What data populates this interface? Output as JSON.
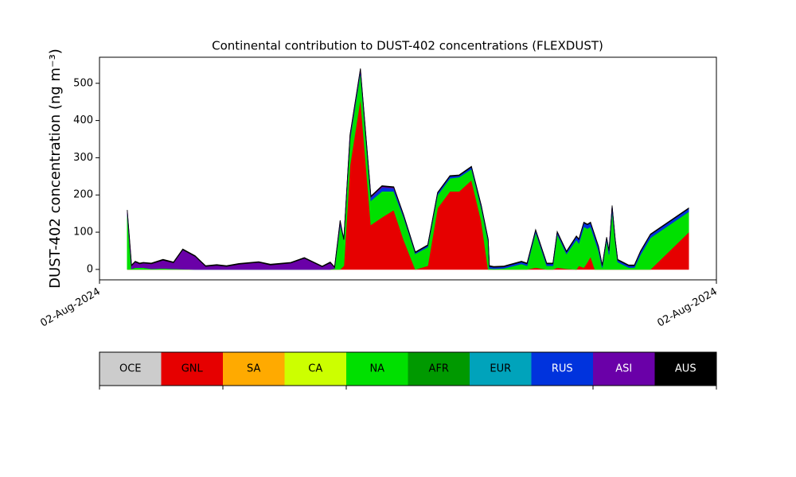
{
  "chart_data": {
    "type": "stacked_area",
    "title": "Continental contribution to DUST-402 concentrations (FLEXDUST)",
    "y_label": "DUST-402 concentration (ng m⁻³)",
    "x": [
      4.5,
      5.2,
      5.8,
      6.5,
      7.1,
      8.4,
      10.3,
      12,
      13.5,
      15.5,
      17.2,
      19,
      20.6,
      22.6,
      25.8,
      27.7,
      31,
      33.2,
      36.1,
      37.4,
      38.1,
      39,
      39.6,
      40.6,
      42.3,
      44,
      45.8,
      47.7,
      49.3,
      51.2,
      53.2,
      54.8,
      56.8,
      58.3,
      60.3,
      61.9,
      63,
      63.2,
      63.9,
      65.5,
      68.4,
      69.3,
      70.7,
      72.5,
      73.5,
      74.2,
      75.7,
      77.3,
      77.7,
      78.5,
      79.1,
      79.6,
      80.3,
      80.9,
      81.5,
      82.2,
      82.6,
      83.1,
      83.6,
      84,
      85.8,
      86.7,
      87.7,
      89.3,
      95.5
    ],
    "xlim": [
      0,
      100
    ],
    "xticks": [
      {
        "value": 0,
        "label": "02-Aug-2024"
      },
      {
        "value": 100,
        "label": "02-Aug-2024"
      }
    ],
    "ylim": [
      -28,
      570
    ],
    "yticks": [
      0,
      100,
      200,
      300,
      400,
      500
    ],
    "series": [
      {
        "name": "GNL",
        "color": "#e60000",
        "values": [
          0,
          0,
          0,
          0,
          0,
          0,
          0,
          0,
          0,
          0,
          0,
          0,
          0,
          0,
          0,
          0,
          0,
          0,
          0,
          0,
          0,
          0,
          10,
          280,
          460,
          120,
          140,
          160,
          80,
          0,
          10,
          165,
          210,
          210,
          240,
          130,
          0,
          0,
          0,
          0,
          0,
          0,
          5,
          0,
          0,
          5,
          2,
          0,
          10,
          5,
          20,
          35,
          0,
          0,
          0,
          0,
          0,
          0,
          0,
          0,
          0,
          0,
          0,
          0,
          100
        ]
      },
      {
        "name": "NA",
        "color": "#00e000",
        "values": [
          150,
          2,
          5,
          5,
          5,
          2,
          3,
          2,
          1,
          0,
          0,
          0,
          0,
          0,
          0,
          0,
          0,
          0,
          0,
          0,
          3,
          120,
          70,
          70,
          70,
          65,
          70,
          50,
          60,
          42,
          50,
          35,
          35,
          38,
          30,
          35,
          75,
          3,
          2,
          3,
          15,
          10,
          95,
          10,
          10,
          90,
          40,
          80,
          60,
          110,
          90,
          80,
          80,
          50,
          5,
          80,
          40,
          160,
          75,
          20,
          5,
          5,
          40,
          85,
          55
        ]
      },
      {
        "name": "RUS",
        "color": "#0033dd",
        "values": [
          3,
          0,
          0,
          0,
          0,
          0,
          0,
          0,
          0,
          0,
          0,
          0,
          0,
          0,
          0,
          0,
          0,
          0,
          0,
          0,
          0,
          5,
          0,
          5,
          5,
          8,
          10,
          8,
          5,
          3,
          4,
          5,
          5,
          4,
          5,
          5,
          5,
          5,
          4,
          4,
          5,
          5,
          5,
          5,
          5,
          5,
          5,
          8,
          10,
          10,
          10,
          10,
          10,
          10,
          5,
          5,
          10,
          10,
          5,
          5,
          5,
          5,
          8,
          8,
          8
        ]
      },
      {
        "name": "ASI",
        "color": "#6a00a8",
        "values": [
          5,
          8,
          15,
          10,
          12,
          13,
          22,
          16,
          52,
          35,
          8,
          11,
          8,
          14,
          19,
          12,
          17,
          30,
          7,
          18,
          2,
          5,
          0,
          5,
          3,
          2,
          3,
          2,
          0,
          0,
          0,
          0,
          0,
          0,
          0,
          0,
          0,
          0,
          0,
          0,
          0,
          0,
          0,
          0,
          0,
          0,
          0,
          0,
          0,
          0,
          0,
          0,
          0,
          0,
          0,
          0,
          0,
          0,
          0,
          0,
          0,
          0,
          0,
          0,
          0
        ]
      },
      {
        "name": "AUS",
        "color": "#000000",
        "values": [
          2,
          2,
          2,
          2,
          2,
          2,
          2,
          2,
          2,
          2,
          2,
          2,
          2,
          2,
          2,
          2,
          2,
          2,
          2,
          2,
          2,
          2,
          2,
          2,
          2,
          2,
          2,
          2,
          2,
          2,
          2,
          2,
          2,
          2,
          2,
          2,
          2,
          2,
          2,
          2,
          2,
          2,
          2,
          2,
          2,
          2,
          2,
          2,
          2,
          2,
          2,
          2,
          2,
          2,
          2,
          2,
          2,
          2,
          2,
          2,
          2,
          2,
          2,
          2,
          2
        ]
      }
    ],
    "colorbar": {
      "labels": [
        "OCE",
        "GNL",
        "SA",
        "CA",
        "NA",
        "AFR",
        "EUR",
        "RUS",
        "ASI",
        "AUS"
      ],
      "colors": [
        "#cccccc",
        "#e60000",
        "#ffaa00",
        "#ccff00",
        "#00e000",
        "#009900",
        "#00a3bb",
        "#0033dd",
        "#6a00a8",
        "#000000"
      ]
    }
  }
}
